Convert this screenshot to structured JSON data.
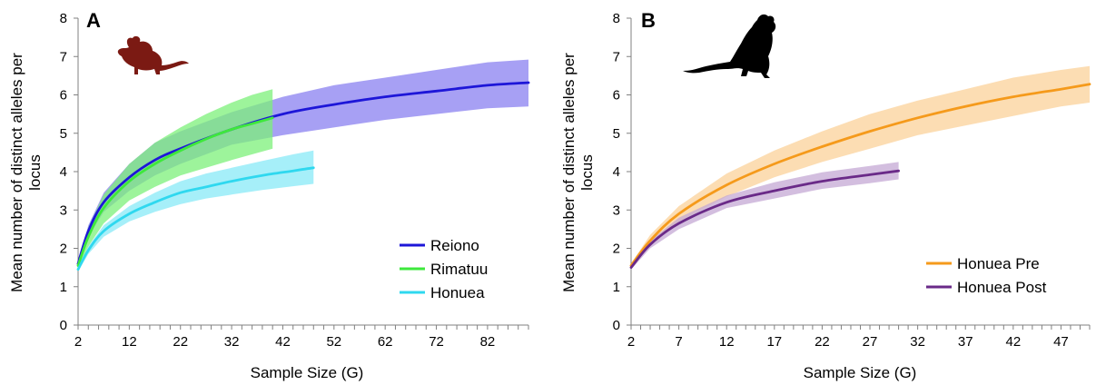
{
  "chart_data": [
    {
      "panel": "A",
      "type": "line",
      "xlabel": "Sample Size (G)",
      "ylabel": [
        "Mean number of distinct alleles per",
        "locus"
      ],
      "xlim": [
        2,
        90
      ],
      "ylim": [
        0,
        8
      ],
      "xticks": [
        2,
        12,
        22,
        32,
        42,
        52,
        62,
        72,
        82
      ],
      "yticks": [
        0,
        1,
        2,
        3,
        4,
        5,
        6,
        7,
        8
      ],
      "legend_position": "bottom-right",
      "icon": "mouse-silhouette",
      "icon_color": "#7b1a13",
      "series": [
        {
          "name": "Reiono",
          "color": "#1d16d8",
          "band_color": "#8a80f0",
          "x": [
            2,
            4,
            7,
            12,
            17,
            22,
            32,
            42,
            52,
            62,
            72,
            82,
            90
          ],
          "y": [
            1.6,
            2.45,
            3.2,
            3.85,
            4.3,
            4.6,
            5.1,
            5.5,
            5.75,
            5.95,
            6.1,
            6.25,
            6.32
          ],
          "lower": [
            1.55,
            2.3,
            2.95,
            3.5,
            3.9,
            4.2,
            4.7,
            4.95,
            5.15,
            5.35,
            5.5,
            5.65,
            5.7
          ],
          "upper": [
            1.65,
            2.6,
            3.45,
            4.2,
            4.75,
            5.05,
            5.55,
            5.95,
            6.25,
            6.45,
            6.65,
            6.85,
            6.92
          ]
        },
        {
          "name": "Rimatuu",
          "color": "#3ee83c",
          "band_color": "#7cf07a",
          "x": [
            2,
            4,
            7,
            12,
            17,
            22,
            27,
            32,
            36,
            40
          ],
          "y": [
            1.55,
            2.3,
            3.05,
            3.75,
            4.2,
            4.55,
            4.85,
            5.1,
            5.25,
            5.4
          ],
          "lower": [
            1.5,
            2.05,
            2.65,
            3.25,
            3.6,
            3.9,
            4.1,
            4.3,
            4.45,
            4.6
          ],
          "upper": [
            1.6,
            2.55,
            3.4,
            4.2,
            4.75,
            5.15,
            5.5,
            5.8,
            6.0,
            6.15
          ]
        },
        {
          "name": "Honuea",
          "color": "#2fd8ef",
          "band_color": "#88eaf7",
          "x": [
            2,
            4,
            7,
            12,
            17,
            22,
            27,
            32,
            38,
            44,
            48
          ],
          "y": [
            1.45,
            1.95,
            2.45,
            2.9,
            3.2,
            3.45,
            3.6,
            3.75,
            3.9,
            4.02,
            4.1
          ],
          "lower": [
            1.4,
            1.85,
            2.3,
            2.7,
            2.95,
            3.15,
            3.3,
            3.4,
            3.52,
            3.62,
            3.68
          ],
          "upper": [
            1.5,
            2.05,
            2.6,
            3.1,
            3.45,
            3.75,
            3.95,
            4.1,
            4.28,
            4.45,
            4.55
          ]
        }
      ]
    },
    {
      "panel": "B",
      "type": "line",
      "xlabel": "Sample Size (G)",
      "ylabel": [
        "Mean number of distinct alleles per",
        "locus"
      ],
      "xlim": [
        2,
        50
      ],
      "ylim": [
        0,
        8
      ],
      "xticks": [
        2,
        7,
        12,
        17,
        22,
        27,
        32,
        37,
        42,
        47
      ],
      "yticks": [
        0,
        1,
        2,
        3,
        4,
        5,
        6,
        7,
        8
      ],
      "legend_position": "bottom-right",
      "icon": "rat-silhouette",
      "icon_color": "#000000",
      "series": [
        {
          "name": "Honuea Pre",
          "color": "#f59a1b",
          "band_color": "#fbd29a",
          "x": [
            2,
            4,
            7,
            12,
            17,
            22,
            27,
            32,
            37,
            42,
            47,
            50
          ],
          "y": [
            1.55,
            2.2,
            2.9,
            3.65,
            4.2,
            4.65,
            5.05,
            5.4,
            5.7,
            5.95,
            6.15,
            6.28
          ],
          "lower": [
            1.5,
            2.1,
            2.7,
            3.35,
            3.85,
            4.25,
            4.6,
            4.95,
            5.2,
            5.45,
            5.7,
            5.8
          ],
          "upper": [
            1.6,
            2.35,
            3.1,
            3.95,
            4.55,
            5.05,
            5.5,
            5.85,
            6.15,
            6.45,
            6.65,
            6.75
          ]
        },
        {
          "name": "Honuea Post",
          "color": "#6a2a88",
          "band_color": "#c4a8d4",
          "x": [
            2,
            4,
            7,
            12,
            17,
            22,
            27,
            30
          ],
          "y": [
            1.5,
            2.1,
            2.65,
            3.2,
            3.5,
            3.75,
            3.92,
            4.02
          ],
          "lower": [
            1.45,
            2.0,
            2.5,
            3.05,
            3.3,
            3.55,
            3.7,
            3.8
          ],
          "upper": [
            1.55,
            2.2,
            2.8,
            3.38,
            3.72,
            3.98,
            4.15,
            4.25
          ]
        }
      ]
    }
  ]
}
